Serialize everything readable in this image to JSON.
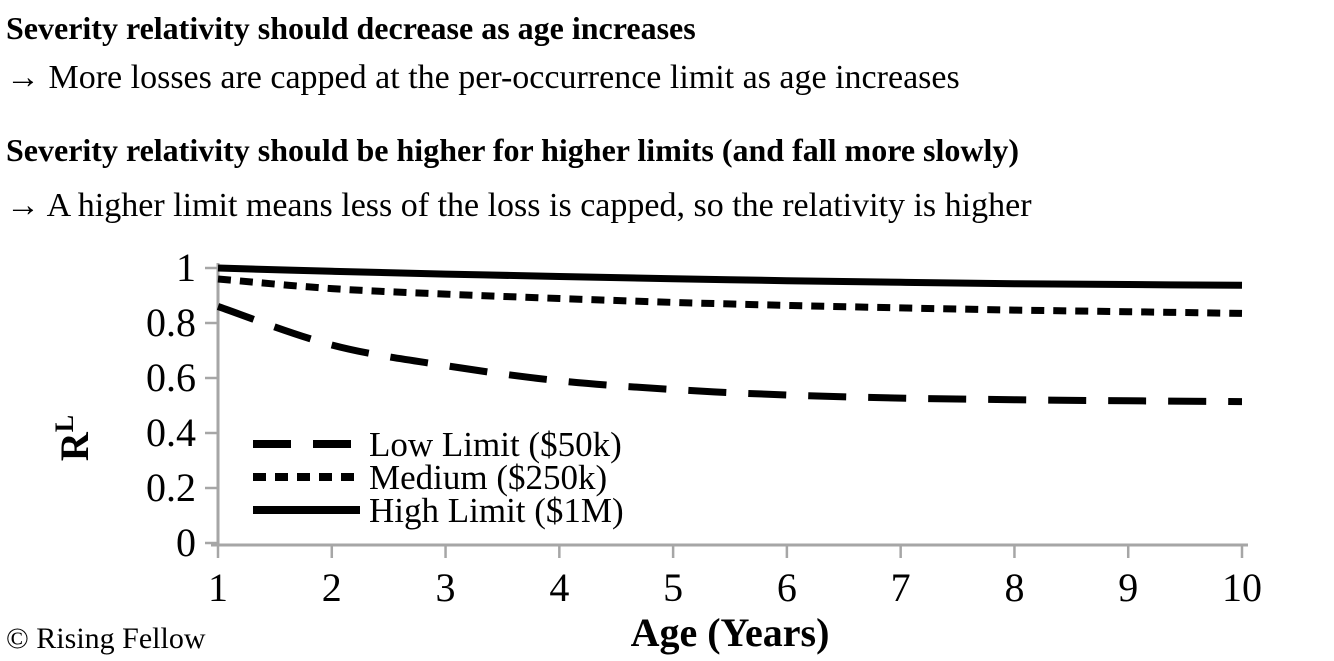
{
  "page": {
    "heading1": "Severity relativity should decrease as age increases",
    "subline1": "→ More losses are capped at the per-occurrence limit as age increases",
    "heading2": "Severity relativity should be higher for higher limits (and fall more slowly)",
    "subline2": "→ A higher limit means less of the loss is capped, so the relativity is higher",
    "footer": "© Rising Fellow"
  },
  "chart_data": {
    "type": "line",
    "title": "",
    "xlabel": "Age (Years)",
    "ylabel": "RL",
    "ylabel_main": "R",
    "ylabel_sup": "L",
    "x": [
      1,
      2,
      3,
      4,
      5,
      6,
      7,
      8,
      9,
      10
    ],
    "xlim": [
      1,
      10
    ],
    "ylim": [
      0,
      1
    ],
    "x_tick_labels": [
      "1",
      "2",
      "3",
      "4",
      "5",
      "6",
      "7",
      "8",
      "9",
      "10"
    ],
    "y_tick_values": [
      0,
      0.2,
      0.4,
      0.6,
      0.8,
      1
    ],
    "y_tick_labels": [
      "0",
      "0.2",
      "0.4",
      "0.6",
      "0.8",
      "1"
    ],
    "grid": false,
    "legend_position": "inside-lower-left",
    "axis_color": "#a6a6a6",
    "series_color": "#000000",
    "series": [
      {
        "name": "Low Limit ($50k)",
        "style": "long-dash",
        "values": [
          0.86,
          0.72,
          0.645,
          0.59,
          0.558,
          0.538,
          0.527,
          0.521,
          0.517,
          0.514
        ]
      },
      {
        "name": "Medium ($250k)",
        "style": "short-dash",
        "values": [
          0.96,
          0.925,
          0.905,
          0.889,
          0.875,
          0.864,
          0.855,
          0.847,
          0.841,
          0.835
        ]
      },
      {
        "name": "High Limit ($1M)",
        "style": "solid",
        "values": [
          1.0,
          0.988,
          0.978,
          0.969,
          0.961,
          0.954,
          0.948,
          0.943,
          0.94,
          0.937
        ]
      }
    ]
  }
}
